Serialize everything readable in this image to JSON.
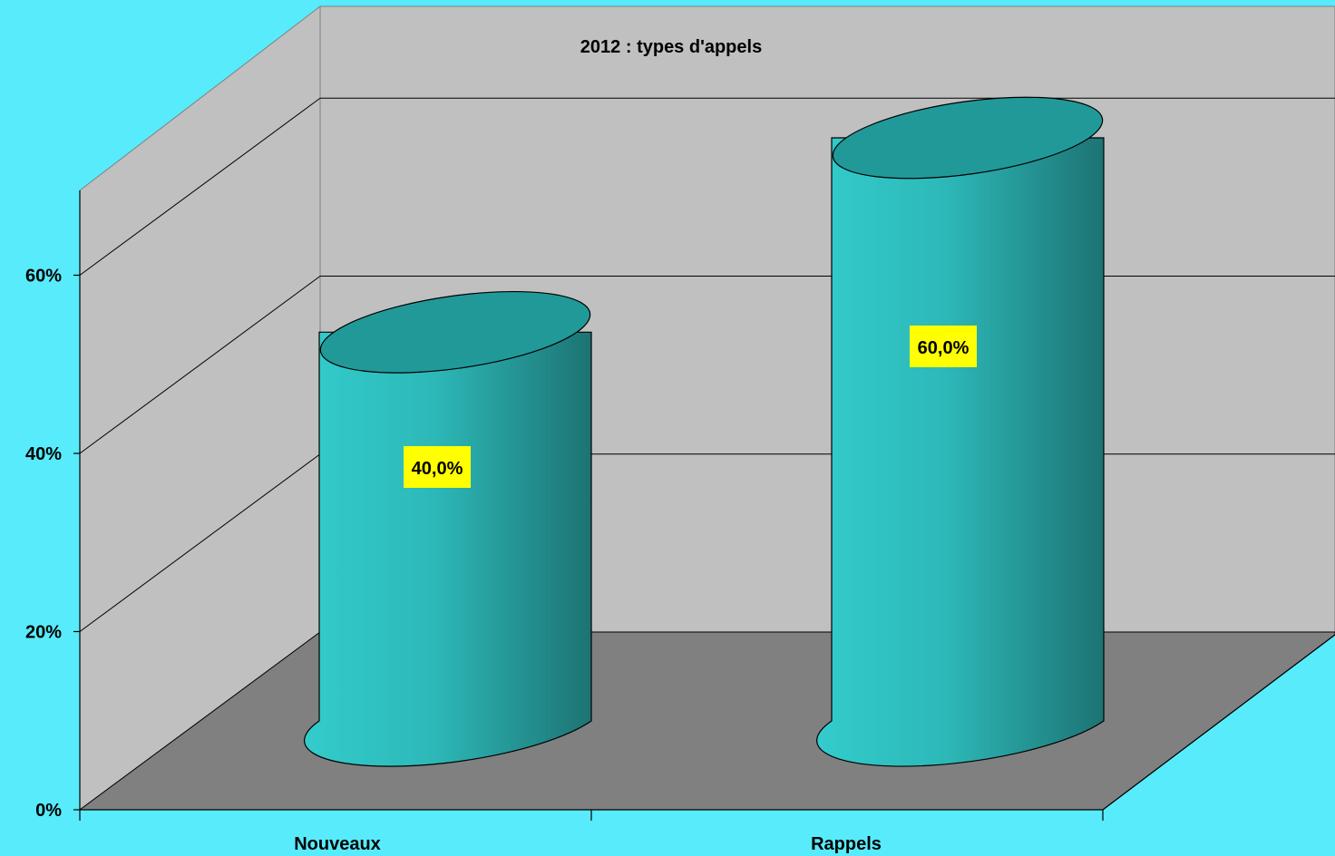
{
  "chart_data": {
    "type": "bar",
    "style": "3d-cylinder",
    "title": "2012 : types d'appels",
    "categories": [
      "Nouveaux",
      "Rappels"
    ],
    "values": [
      40.0,
      60.0
    ],
    "data_labels": [
      "40,0%",
      "60,0%"
    ],
    "y_ticks": [
      0,
      20,
      40,
      60
    ],
    "y_tick_labels": [
      "0%",
      "20%",
      "40%",
      "60%"
    ],
    "ylim": [
      0,
      80
    ],
    "grid": true,
    "legend": "none",
    "colors": {
      "background": "#58EBFB",
      "back_wall": "#C0C0C0",
      "floor": "#808080",
      "bar_light": "#33CCCC",
      "bar_dark": "#1D7373",
      "bar_top": "#229999",
      "label_bg": "#FFFF00"
    }
  }
}
